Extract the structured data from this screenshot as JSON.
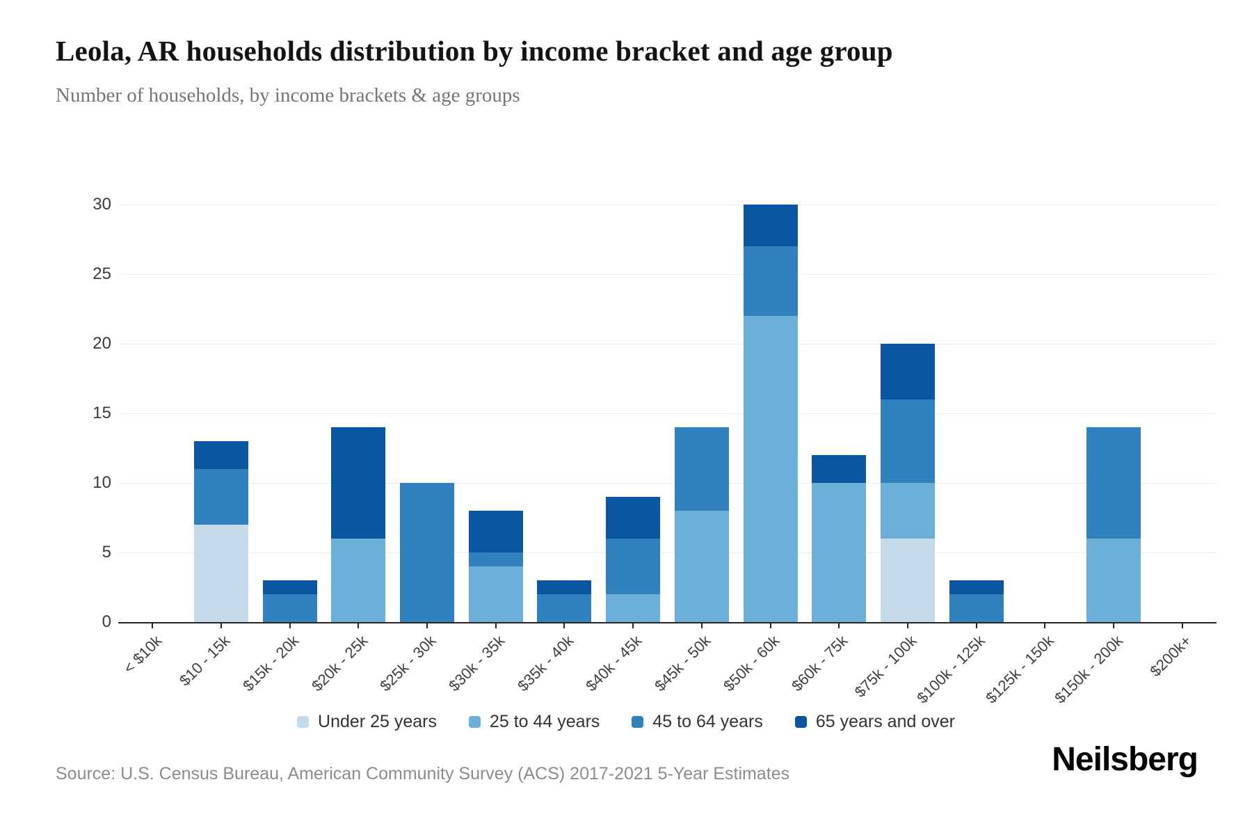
{
  "header": {
    "title": "Leola, AR households distribution by income bracket and age group",
    "subtitle": "Number of households, by income brackets & age groups"
  },
  "chart_data": {
    "type": "bar",
    "stacked": true,
    "title": "Leola, AR households distribution by income bracket and age group",
    "subtitle": "Number of households, by income brackets & age groups",
    "xlabel": "",
    "ylabel": "",
    "ylim": [
      0,
      30
    ],
    "yticks": [
      0,
      5,
      10,
      15,
      20,
      25,
      30
    ],
    "grid": true,
    "legend_position": "bottom",
    "categories": [
      "< $10k",
      "$10 - 15k",
      "$15k - 20k",
      "$20k - 25k",
      "$25k - 30k",
      "$30k - 35k",
      "$35k - 40k",
      "$40k - 45k",
      "$45k - 50k",
      "$50k - 60k",
      "$60k - 75k",
      "$75k - 100k",
      "$100k - 125k",
      "$125k - 150k",
      "$150k - 200k",
      "$200k+"
    ],
    "series": [
      {
        "name": "Under 25 years",
        "color": "#c6dbea",
        "values": [
          0,
          7,
          0,
          0,
          0,
          0,
          0,
          0,
          0,
          0,
          0,
          6,
          0,
          0,
          0,
          0
        ]
      },
      {
        "name": "25 to 44 years",
        "color": "#6cb0d9",
        "values": [
          0,
          0,
          0,
          6,
          0,
          4,
          0,
          2,
          8,
          22,
          10,
          4,
          0,
          0,
          6,
          0
        ]
      },
      {
        "name": "45 to 64 years",
        "color": "#3081bd",
        "values": [
          0,
          4,
          2,
          0,
          10,
          1,
          2,
          4,
          6,
          5,
          0,
          6,
          2,
          0,
          8,
          0
        ]
      },
      {
        "name": "65 years and over",
        "color": "#0b56a1",
        "values": [
          0,
          2,
          1,
          8,
          0,
          3,
          1,
          3,
          0,
          3,
          2,
          4,
          1,
          0,
          0,
          0
        ]
      }
    ],
    "totals": [
      0,
      13,
      3,
      14,
      10,
      8,
      3,
      9,
      14,
      30,
      12,
      20,
      3,
      0,
      14,
      0
    ]
  },
  "footer": {
    "source": "Source: U.S. Census Bureau, American Community Survey (ACS) 2017-2021 5-Year Estimates",
    "brand": "Neilsberg"
  }
}
